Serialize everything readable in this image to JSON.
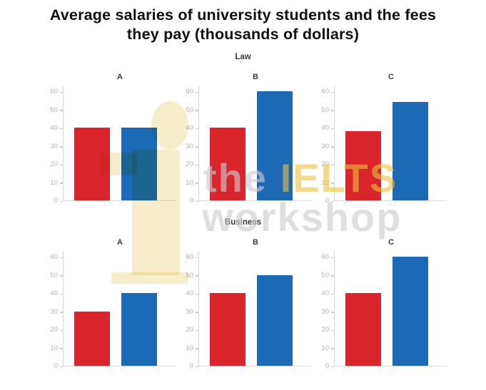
{
  "header": {
    "title_line1": "Average salaries of university students and the fees",
    "title_line2": "they pay (thousands of dollars)"
  },
  "watermark": {
    "line1_gray": "the",
    "line1_yellow": "IELTS",
    "line2": "workshop",
    "yellow": "#eec03c",
    "gray": "#cdcdcd",
    "logo_cream": "#f6eecb"
  },
  "chart_data": {
    "type": "bar",
    "title": "Average salaries of university students and the fees they pay (thousands of dollars)",
    "xlabel": "",
    "ylabel": "",
    "ylim": [
      0,
      60
    ],
    "yticks": [
      60,
      50,
      40,
      30,
      20,
      10,
      0
    ],
    "grid": false,
    "legend_position": "none",
    "series_names": [
      "red",
      "blue"
    ],
    "series_colors": [
      "#da252c",
      "#1c6ab5"
    ],
    "rows": [
      {
        "title": "Law",
        "panels": [
          {
            "label": "A",
            "values": [
              40,
              40
            ]
          },
          {
            "label": "B",
            "values": [
              40,
              60
            ]
          },
          {
            "label": "C",
            "values": [
              38,
              54
            ]
          }
        ]
      },
      {
        "title": "Business",
        "panels": [
          {
            "label": "A",
            "values": [
              30,
              40
            ]
          },
          {
            "label": "B",
            "values": [
              40,
              50
            ]
          },
          {
            "label": "C",
            "values": [
              40,
              60
            ]
          }
        ]
      }
    ]
  }
}
